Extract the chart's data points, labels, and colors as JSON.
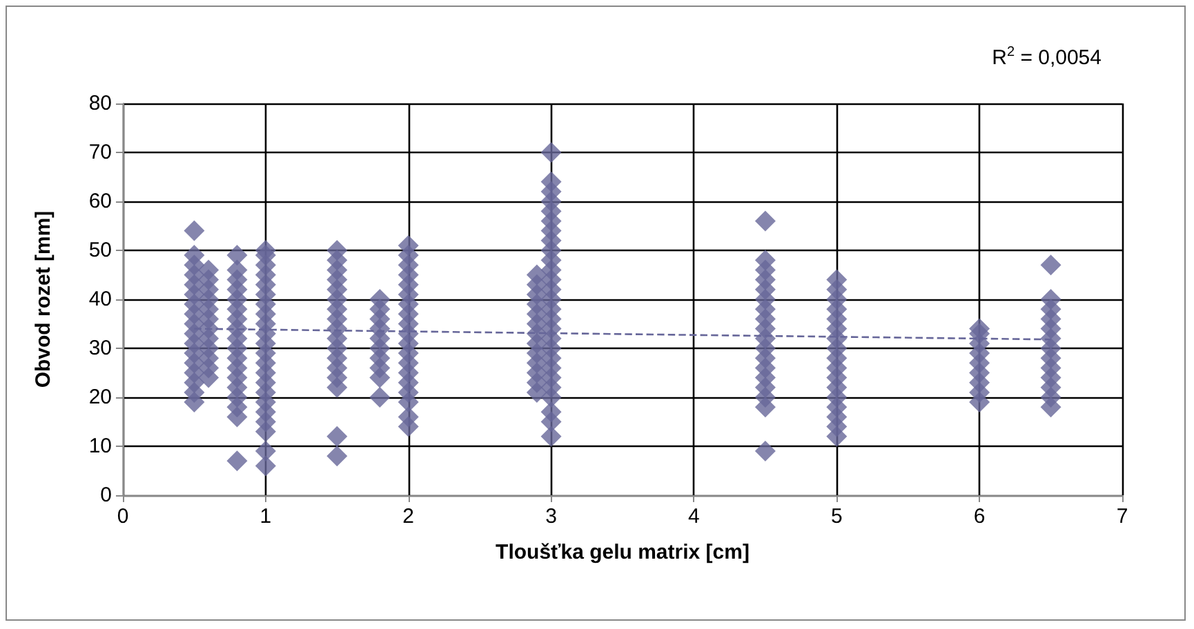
{
  "chart_data": {
    "type": "scatter",
    "xlabel": "Tloušťka gelu matrix [cm]",
    "ylabel": "Obvod rozet [mm]",
    "annotations": [
      "R$^{2}$ = 0,0054"
    ],
    "xlim": [
      0,
      7
    ],
    "xticks": [
      0,
      1,
      2,
      3,
      4,
      5,
      6,
      7
    ],
    "ylim": [
      0,
      80
    ],
    "yticks": [
      0,
      10,
      20,
      30,
      40,
      50,
      60,
      70,
      80
    ],
    "grid": true,
    "marker": "diamond",
    "series": [
      {
        "color": "#666699",
        "x": [
          0.5,
          0.5,
          0.5,
          0.5,
          0.5,
          0.5,
          0.5,
          0.5,
          0.5,
          0.5,
          0.5,
          0.5,
          0.5,
          0.5,
          0.5,
          0.5,
          0.5,
          0.6,
          0.6,
          0.6,
          0.6,
          0.6,
          0.6,
          0.6,
          0.6,
          0.6,
          0.6,
          0.6,
          0.6,
          0.8,
          0.8,
          0.8,
          0.8,
          0.8,
          0.8,
          0.8,
          0.8,
          0.8,
          0.8,
          0.8,
          0.8,
          0.8,
          0.8,
          0.8,
          0.8,
          0.8,
          0.8,
          1,
          1,
          1,
          1,
          1,
          1,
          1,
          1,
          1,
          1,
          1,
          1,
          1,
          1,
          1,
          1,
          1,
          1,
          1,
          1,
          1,
          1,
          1.5,
          1.5,
          1.5,
          1.5,
          1.5,
          1.5,
          1.5,
          1.5,
          1.5,
          1.5,
          1.5,
          1.5,
          1.5,
          1.5,
          1.5,
          1.5,
          1.5,
          1.8,
          1.8,
          1.8,
          1.8,
          1.8,
          1.8,
          1.8,
          1.8,
          1.8,
          1.8,
          2,
          2,
          2,
          2,
          2,
          2,
          2,
          2,
          2,
          2,
          2,
          2,
          2,
          2,
          2,
          2,
          2,
          2,
          2,
          2.9,
          2.9,
          2.9,
          2.9,
          2.9,
          2.9,
          2.9,
          2.9,
          2.9,
          2.9,
          2.9,
          2.9,
          2.9,
          3,
          3,
          3,
          3,
          3,
          3,
          3,
          3,
          3,
          3,
          3,
          3,
          3,
          3,
          3,
          3,
          3,
          3,
          3,
          3,
          3,
          3,
          3,
          3,
          3,
          3,
          3,
          4.5,
          4.5,
          4.5,
          4.5,
          4.5,
          4.5,
          4.5,
          4.5,
          4.5,
          4.5,
          4.5,
          4.5,
          4.5,
          4.5,
          4.5,
          4.5,
          4.5,
          4.5,
          5,
          5,
          5,
          5,
          5,
          5,
          5,
          5,
          5,
          5,
          5,
          5,
          5,
          5,
          5,
          5,
          5,
          6,
          6,
          6,
          6,
          6,
          6,
          6,
          6,
          6,
          6.5,
          6.5,
          6.5,
          6.5,
          6.5,
          6.5,
          6.5,
          6.5,
          6.5,
          6.5,
          6.5,
          6.5,
          6.5
        ],
        "values": [
          54,
          19,
          21,
          23,
          25,
          27,
          29,
          31,
          33,
          35,
          37,
          39,
          41,
          43,
          45,
          47,
          49,
          24,
          26,
          28,
          30,
          32,
          34,
          36,
          38,
          40,
          42,
          44,
          46,
          49,
          7,
          16,
          18,
          20,
          22,
          24,
          26,
          28,
          30,
          32,
          34,
          36,
          38,
          40,
          42,
          44,
          46,
          50,
          6,
          9,
          13,
          15,
          17,
          19,
          21,
          23,
          25,
          27,
          29,
          31,
          33,
          35,
          37,
          39,
          41,
          43,
          45,
          47,
          49,
          50,
          8,
          12,
          22,
          24,
          26,
          28,
          30,
          32,
          34,
          36,
          38,
          40,
          42,
          44,
          46,
          48,
          40,
          20,
          24,
          26,
          28,
          30,
          32,
          34,
          36,
          38,
          51,
          14,
          16,
          19,
          21,
          23,
          25,
          27,
          29,
          31,
          33,
          35,
          37,
          39,
          41,
          43,
          45,
          47,
          49,
          45,
          21,
          23,
          25,
          27,
          29,
          31,
          33,
          35,
          37,
          39,
          41,
          43,
          70,
          64,
          62,
          60,
          58,
          56,
          54,
          52,
          50,
          48,
          46,
          44,
          42,
          40,
          38,
          36,
          34,
          32,
          30,
          28,
          26,
          24,
          22,
          20,
          17,
          15,
          12,
          56,
          9,
          18,
          20,
          22,
          24,
          26,
          28,
          30,
          32,
          34,
          36,
          38,
          40,
          42,
          44,
          46,
          48,
          44,
          12,
          14,
          16,
          18,
          20,
          22,
          24,
          26,
          28,
          30,
          32,
          34,
          36,
          38,
          40,
          42,
          34,
          19,
          21,
          23,
          25,
          27,
          29,
          31,
          33,
          47,
          18,
          20,
          22,
          24,
          26,
          28,
          30,
          32,
          34,
          36,
          38,
          40
        ]
      },
      {
        "type": "line",
        "color": "#666699",
        "line_style": "dashed",
        "marker": "none",
        "x": [
          0.5,
          6.5
        ],
        "values": [
          34,
          31.8
        ]
      }
    ]
  }
}
